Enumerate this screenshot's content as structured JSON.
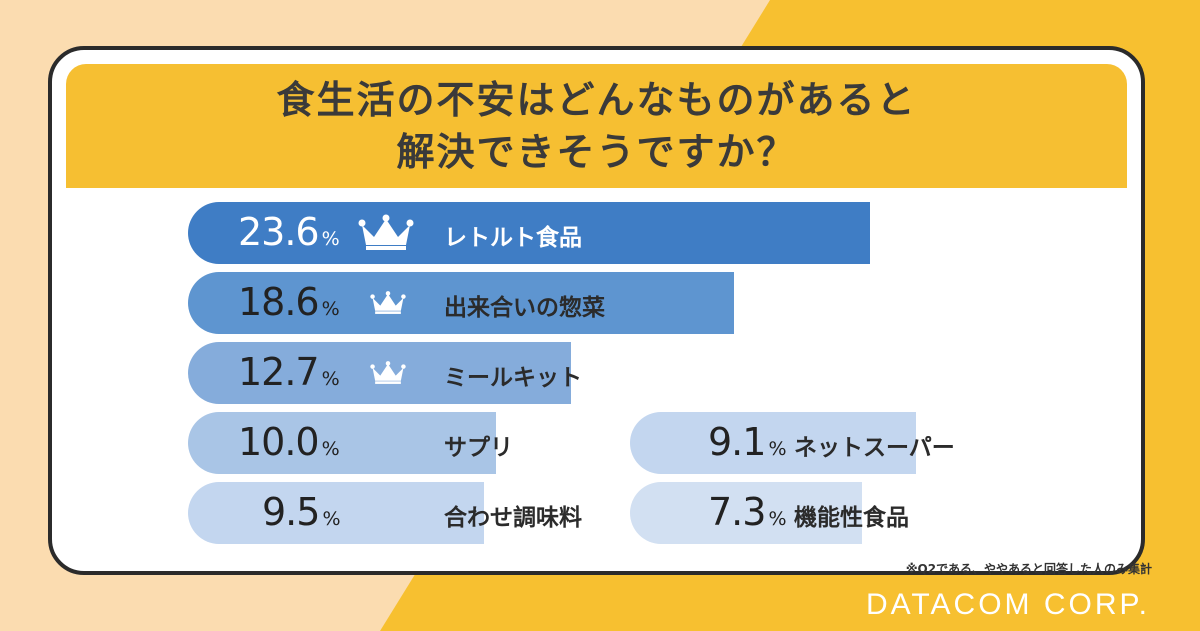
{
  "header": {
    "title_line1": "食生活の不安はどんなものがあると",
    "title_line2": "解決できそうですか？"
  },
  "chart_data": {
    "type": "bar",
    "orientation": "horizontal",
    "unit": "%",
    "items": [
      {
        "label": "レトルト食品",
        "value": 23.6,
        "value_text": "23.6",
        "rank": 1
      },
      {
        "label": "出来合いの惣菜",
        "value": 18.6,
        "value_text": "18.6",
        "rank": 2
      },
      {
        "label": "ミールキット",
        "value": 12.7,
        "value_text": "12.7",
        "rank": 3
      },
      {
        "label": "サプリ",
        "value": 10.0,
        "value_text": "10.0"
      },
      {
        "label": "合わせ調味料",
        "value": 9.5,
        "value_text": "9.5"
      },
      {
        "label": "ネットスーパー",
        "value": 9.1,
        "value_text": "9.1"
      },
      {
        "label": "機能性食品",
        "value": 7.3,
        "value_text": "7.3"
      }
    ],
    "colors": [
      "#3f7dc5",
      "#5e95d0",
      "#85acdb",
      "#a9c5e6",
      "#c3d6ef",
      "#c3d6ef",
      "#d2e0f2"
    ]
  },
  "footnote": "※Q2である、ややあると回答した人のみ集計",
  "brand": "DATACOM CORP."
}
